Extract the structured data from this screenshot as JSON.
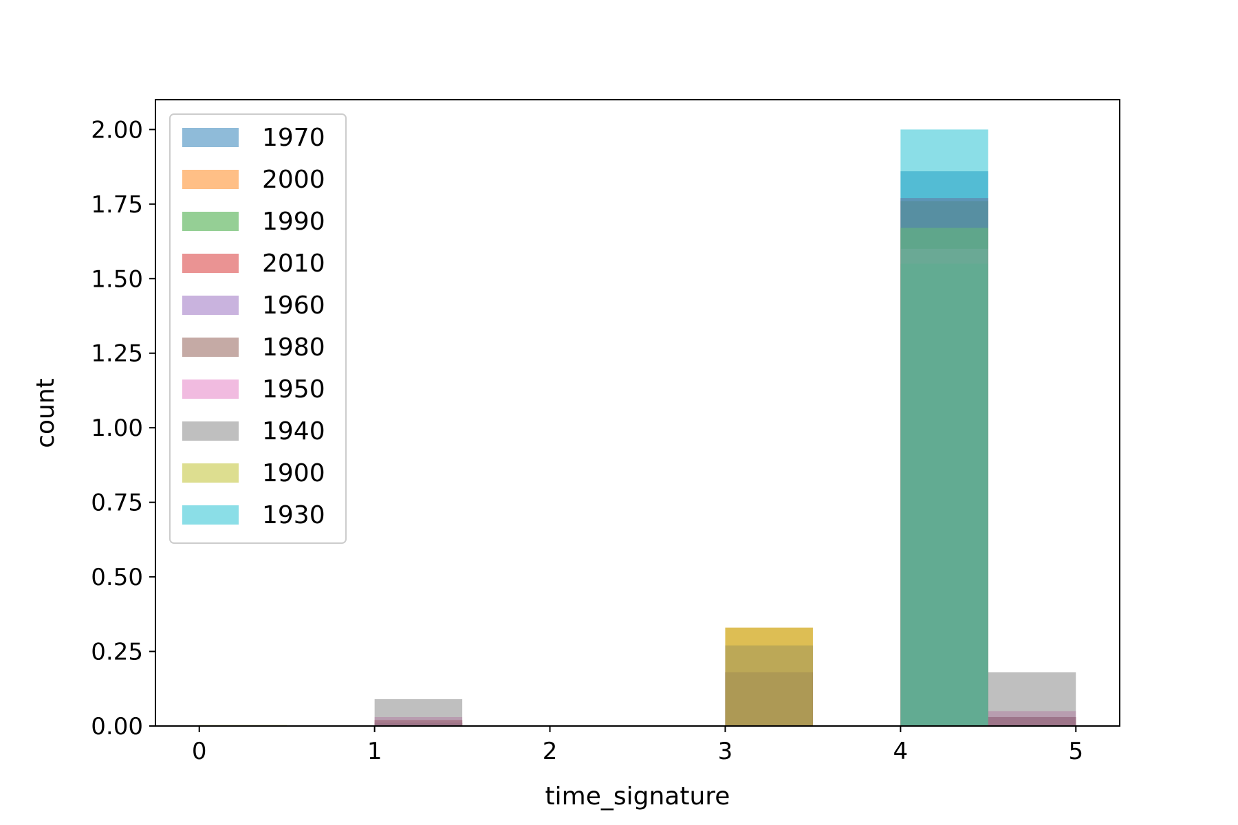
{
  "chart_data": {
    "type": "bar",
    "subtype": "overlaid histogram",
    "xlabel": "time_signature",
    "ylabel": "count",
    "xlim": [
      -0.25,
      5.25
    ],
    "ylim": [
      0,
      2.1
    ],
    "bin_edges": [
      0,
      0.5,
      1,
      1.5,
      2,
      2.5,
      3,
      3.5,
      4,
      4.5,
      5
    ],
    "xticks": [
      "0",
      "1",
      "2",
      "3",
      "4",
      "5"
    ],
    "yticks": [
      "0.00",
      "0.25",
      "0.50",
      "0.75",
      "1.00",
      "1.25",
      "1.50",
      "1.75",
      "2.00"
    ],
    "legend_position": "top-left",
    "grid": false,
    "series": [
      {
        "name": "1970",
        "color": "#1f77b4",
        "values": [
          0,
          0,
          0.01,
          0,
          0,
          0,
          0.18,
          0,
          1.86,
          0.03
        ]
      },
      {
        "name": "2000",
        "color": "#ff7f0e",
        "values": [
          0,
          0,
          0.01,
          0,
          0,
          0,
          0.33,
          0,
          1.6,
          0.02
        ]
      },
      {
        "name": "1990",
        "color": "#2ca02c",
        "values": [
          0,
          0,
          0.01,
          0,
          0,
          0,
          0.27,
          0,
          1.67,
          0.03
        ]
      },
      {
        "name": "2010",
        "color": "#d62728",
        "values": [
          0,
          0,
          0.02,
          0,
          0,
          0,
          0.18,
          0,
          1.77,
          0.03
        ]
      },
      {
        "name": "1960",
        "color": "#9467bd",
        "values": [
          0,
          0,
          0.01,
          0,
          0,
          0,
          0.18,
          0,
          1.77,
          0.03
        ]
      },
      {
        "name": "1980",
        "color": "#8c564b",
        "values": [
          0,
          0,
          0.02,
          0,
          0,
          0,
          0.18,
          0,
          1.76,
          0.03
        ]
      },
      {
        "name": "1950",
        "color": "#e377c2",
        "values": [
          0,
          0,
          0.03,
          0,
          0,
          0,
          0.27,
          0,
          1.6,
          0.05
        ]
      },
      {
        "name": "1940",
        "color": "#7f7f7f",
        "values": [
          0,
          0,
          0.09,
          0,
          0,
          0,
          0.18,
          0,
          1.55,
          0.18
        ]
      },
      {
        "name": "1900",
        "color": "#bcbd22",
        "values": [
          0.003,
          0,
          0,
          0,
          0,
          0,
          0.33,
          0,
          1.67,
          0
        ]
      },
      {
        "name": "1930",
        "color": "#17becf",
        "values": [
          0,
          0,
          0,
          0,
          0,
          0,
          0,
          0,
          2.0,
          0
        ]
      }
    ]
  }
}
